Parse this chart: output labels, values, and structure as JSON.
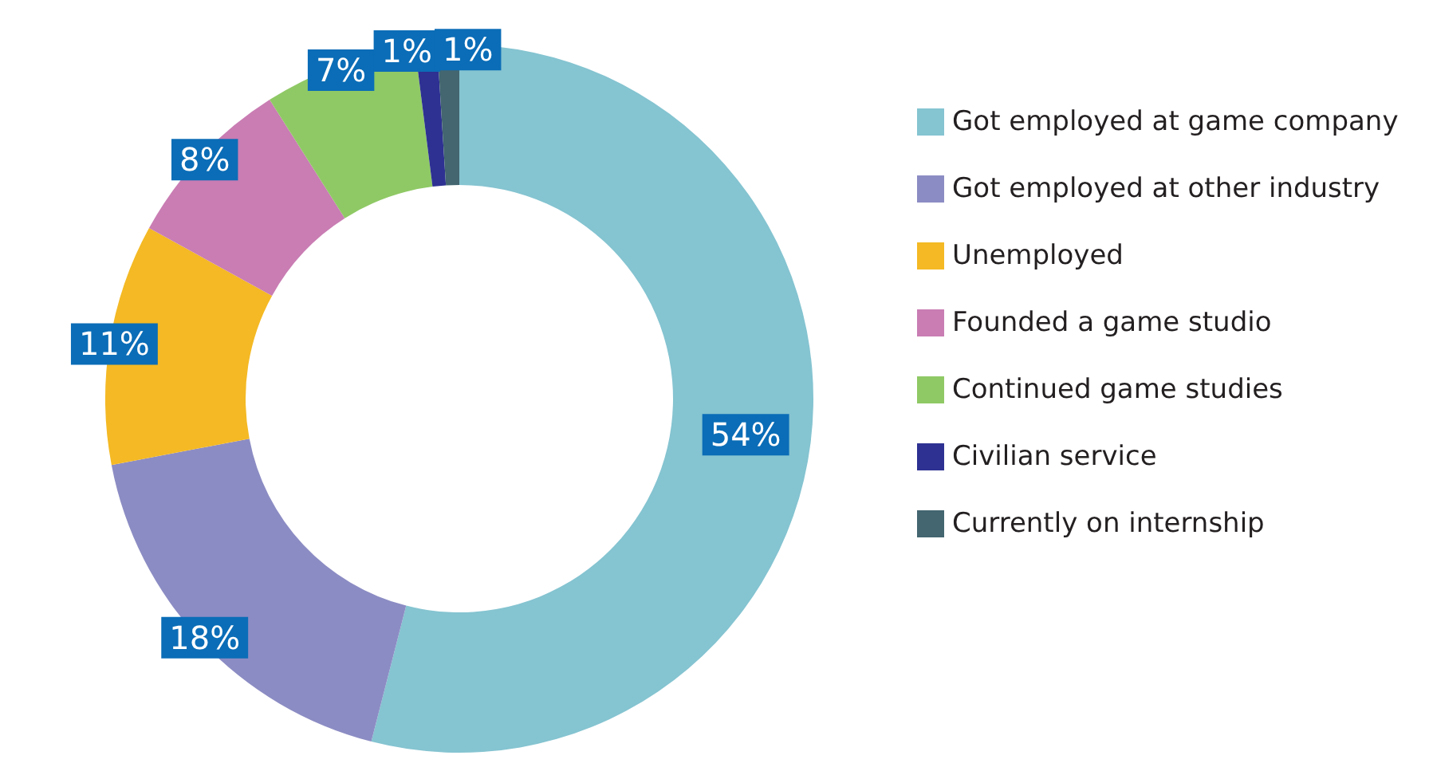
{
  "chart_data": {
    "type": "donut",
    "categories": [
      "Got employed at game company",
      "Got employed at other industry",
      "Unemployed",
      "Founded a game studio",
      "Continued game studies",
      "Civilian service",
      "Currently on internship"
    ],
    "values": [
      54,
      18,
      11,
      8,
      7,
      1,
      1
    ],
    "colors": [
      "#85c4d1",
      "#8c8cc4",
      "#f4b924",
      "#c97db3",
      "#8fc965",
      "#2e3192",
      "#436670"
    ],
    "value_labels": [
      "54%",
      "18%",
      "11%",
      "8%",
      "7%",
      "1%",
      "1%"
    ],
    "legend": "right"
  }
}
